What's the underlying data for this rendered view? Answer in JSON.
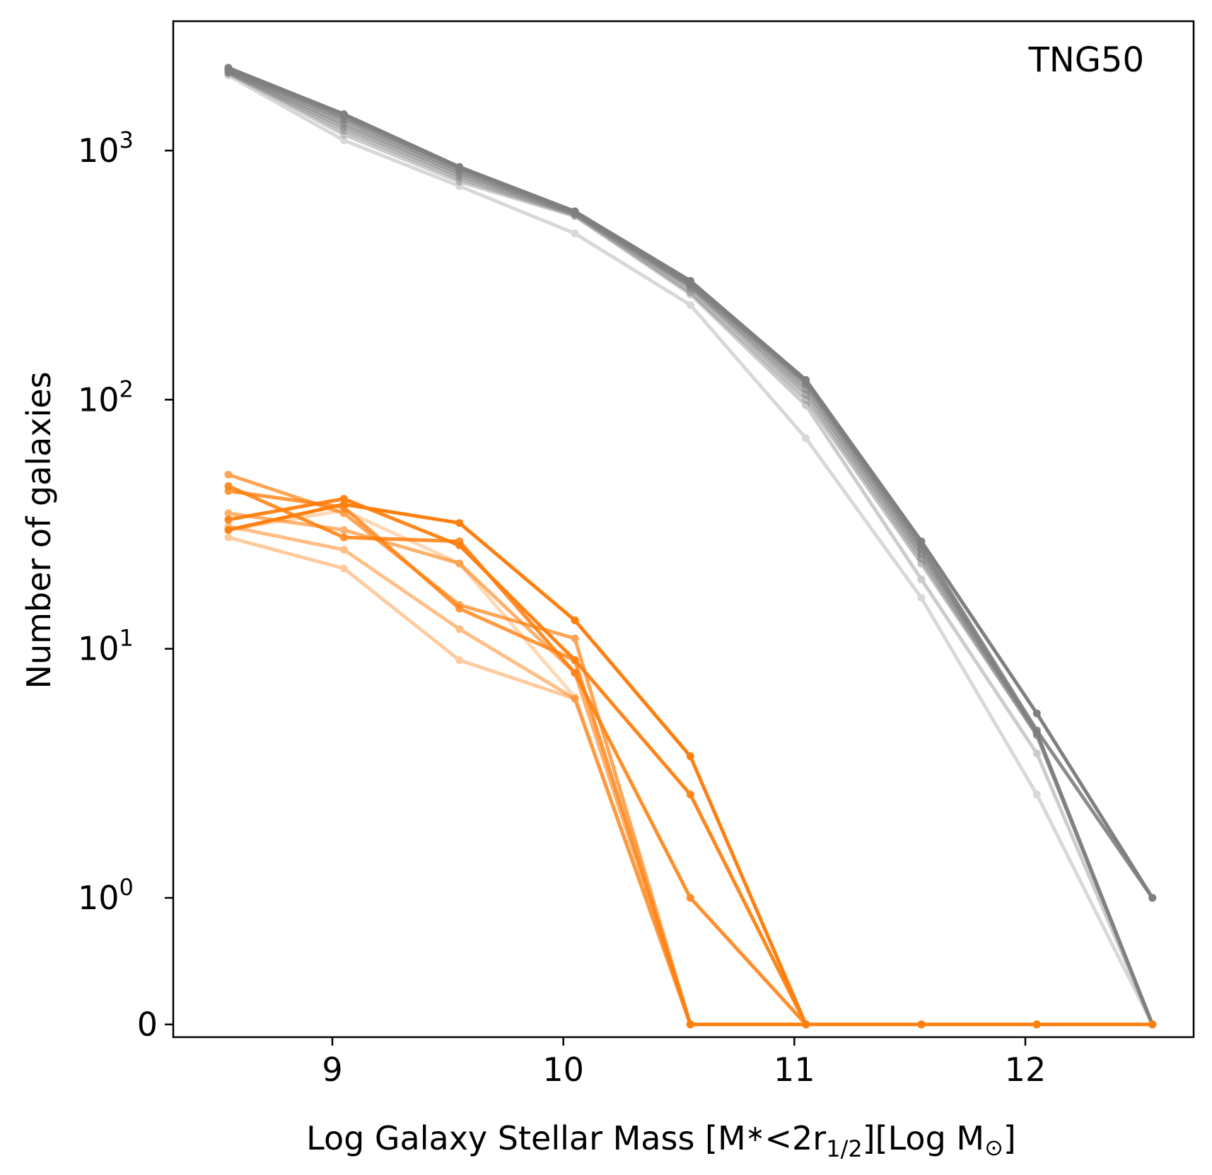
{
  "chart_data": {
    "type": "line",
    "annotation": "TNG50",
    "xlabel_parts": {
      "prefix": "Log Galaxy Stellar Mass [M",
      "star": "∗",
      "lt2r": "<2r",
      "sub": "1/2",
      "mid": "][Log M",
      "sun": "⊙",
      "end": "]"
    },
    "ylabel": "Number of galaxies",
    "xlim": [
      8.3,
      12.78
    ],
    "yscale": "symlog",
    "ytick_labels": [
      {
        "value": 0,
        "text": "0"
      },
      {
        "value": 1,
        "base": "10",
        "exp": "0"
      },
      {
        "value": 10,
        "base": "10",
        "exp": "1"
      },
      {
        "value": 100,
        "base": "10",
        "exp": "2"
      },
      {
        "value": 1000,
        "base": "10",
        "exp": "3"
      }
    ],
    "xticks": [
      9,
      10,
      11,
      12
    ],
    "xtick_labels": [
      "9",
      "10",
      "11",
      "12"
    ],
    "x": [
      8.55,
      9.05,
      9.55,
      10.05,
      10.55,
      11.05,
      11.55,
      12.05,
      12.55
    ],
    "colors": {
      "all": "#7f7f7f",
      "selected": "#ff7f0e"
    },
    "series": [
      {
        "group": "all",
        "opacity": 1.0,
        "values": [
          2150,
          1400,
          860,
          570,
          300,
          120,
          27,
          5.5,
          1
        ]
      },
      {
        "group": "all",
        "opacity": 0.9,
        "values": [
          2120,
          1370,
          850,
          570,
          295,
          118,
          26,
          4.7,
          1
        ]
      },
      {
        "group": "all",
        "opacity": 0.8,
        "values": [
          2100,
          1330,
          830,
          565,
          290,
          115,
          25,
          4.6,
          0
        ]
      },
      {
        "group": "all",
        "opacity": 0.7,
        "values": [
          2080,
          1280,
          810,
          560,
          285,
          110,
          24,
          4.6,
          0
        ]
      },
      {
        "group": "all",
        "opacity": 0.6,
        "values": [
          2060,
          1240,
          790,
          555,
          280,
          105,
          23,
          4.5,
          0
        ]
      },
      {
        "group": "all",
        "opacity": 0.5,
        "values": [
          2050,
          1200,
          770,
          550,
          270,
          100,
          22,
          4.5,
          0
        ]
      },
      {
        "group": "all",
        "opacity": 0.4,
        "values": [
          2040,
          1160,
          750,
          545,
          265,
          95,
          19,
          3.8,
          0
        ]
      },
      {
        "group": "all",
        "opacity": 0.3,
        "values": [
          2000,
          1100,
          720,
          465,
          240,
          70,
          16,
          2.6,
          0
        ]
      },
      {
        "group": "selected",
        "opacity": 1.0,
        "values": [
          30,
          38,
          32,
          13,
          3.7,
          0,
          0,
          0,
          0
        ]
      },
      {
        "group": "selected",
        "opacity": 0.95,
        "values": [
          33,
          40,
          26,
          9,
          2.6,
          0,
          0,
          0,
          0
        ]
      },
      {
        "group": "selected",
        "opacity": 0.88,
        "values": [
          45,
          28,
          27,
          8,
          1,
          0,
          0,
          0,
          0
        ]
      },
      {
        "group": "selected",
        "opacity": 0.8,
        "values": [
          43,
          37,
          14.5,
          9,
          0,
          0,
          0,
          0,
          0
        ]
      },
      {
        "group": "selected",
        "opacity": 0.7,
        "values": [
          50,
          35,
          15,
          11,
          0,
          0,
          0,
          0,
          0
        ]
      },
      {
        "group": "selected",
        "opacity": 0.6,
        "values": [
          35,
          30,
          22,
          8,
          0,
          0,
          0,
          0,
          0
        ]
      },
      {
        "group": "selected",
        "opacity": 0.5,
        "values": [
          31,
          25,
          12,
          6.3,
          0,
          0,
          0,
          0,
          0
        ]
      },
      {
        "group": "selected",
        "opacity": 0.4,
        "values": [
          28,
          21,
          9,
          6.3,
          0,
          0,
          0,
          0,
          0
        ]
      },
      {
        "group": "selected",
        "opacity": 0.3,
        "values": [
          30,
          36,
          22,
          6.4,
          0,
          0,
          0,
          0,
          0
        ]
      }
    ]
  }
}
